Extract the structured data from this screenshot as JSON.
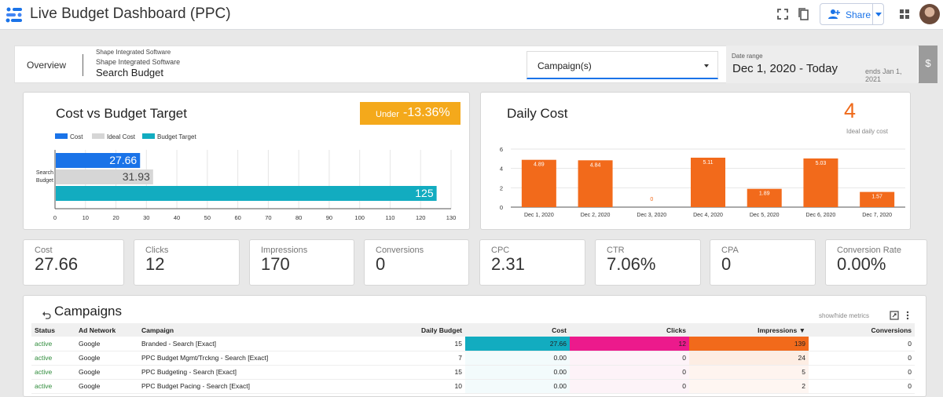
{
  "app": {
    "title": "Live Budget Dashboard (PPC)",
    "share_label": "Share"
  },
  "header": {
    "nav_label": "Overview",
    "account_line1": "Shape Integrated Software",
    "account_line2": "Shape Integrated Software",
    "account_line3": "Search Budget",
    "campaign_filter": "Campaign(s)",
    "date_range_label": "Date range",
    "date_range_value": "Dec 1, 2020 - Today",
    "date_range_end": "ends Jan 1, 2021",
    "side_symbol": "$"
  },
  "colors": {
    "cost": "#1a73e8",
    "ideal": "#d6d6d6",
    "budget": "#12acc0",
    "daily": "#f26a1b",
    "badge": "#f4a91b"
  },
  "cost_vs_budget": {
    "title": "Cost vs Budget Target",
    "badge_label": "Under",
    "badge_value": "-13.36%"
  },
  "daily_cost": {
    "title": "Daily Cost",
    "ideal_value": "4",
    "ideal_label": "Ideal daily cost"
  },
  "chart_data": [
    {
      "type": "bar",
      "orientation": "horizontal",
      "title": "Cost vs Budget Target",
      "categories": [
        "Search Budget"
      ],
      "series": [
        {
          "name": "Cost",
          "values": [
            27.66
          ],
          "label": "27.66"
        },
        {
          "name": "Ideal Cost",
          "values": [
            31.93
          ],
          "label": "31.93"
        },
        {
          "name": "Budget Target",
          "values": [
            125
          ],
          "label": "125"
        }
      ],
      "category_label": [
        "Search",
        "Budget"
      ],
      "xlim": [
        0,
        130
      ],
      "xticks": [
        "0",
        "10",
        "20",
        "30",
        "40",
        "50",
        "60",
        "70",
        "80",
        "90",
        "100",
        "110",
        "120",
        "130"
      ],
      "legend": "top-left"
    },
    {
      "type": "bar",
      "title": "Daily Cost",
      "categories": [
        "Dec 1, 2020",
        "Dec 2, 2020",
        "Dec 3, 2020",
        "Dec 4, 2020",
        "Dec 5, 2020",
        "Dec 6, 2020",
        "Dec 7, 2020"
      ],
      "values": [
        4.89,
        4.84,
        0,
        5.11,
        1.89,
        5.03,
        1.57
      ],
      "labels": [
        "4.89",
        "4.84",
        "0",
        "5.11",
        "1.89",
        "5.03",
        "1.57"
      ],
      "ylim": [
        0,
        6
      ],
      "yticks": [
        "0",
        "2",
        "4",
        "6"
      ]
    }
  ],
  "kpis": [
    {
      "label": "Cost",
      "value": "27.66"
    },
    {
      "label": "Clicks",
      "value": "12"
    },
    {
      "label": "Impressions",
      "value": "170"
    },
    {
      "label": "Conversions",
      "value": "0"
    },
    {
      "label": "CPC",
      "value": "2.31"
    },
    {
      "label": "CTR",
      "value": "7.06%"
    },
    {
      "label": "CPA",
      "value": "0"
    },
    {
      "label": "Conversion Rate",
      "value": "0.00%"
    }
  ],
  "campaigns": {
    "title": "Campaigns",
    "show_hide": "show/hide metrics",
    "columns": [
      "Status",
      "Ad Network",
      "Campaign",
      "Daily Budget",
      "Cost",
      "Clicks",
      "Impressions ▼",
      "Conversions"
    ],
    "rows": [
      {
        "status": "active",
        "network": "Google",
        "campaign": "Branded - Search [Exact]",
        "budget": "15",
        "cost": "27.66",
        "clicks": "12",
        "impressions": "139",
        "conversions": "0",
        "cost_frac": 1.0,
        "clicks_frac": 1.0,
        "impr_frac": 1.0
      },
      {
        "status": "active",
        "network": "Google",
        "campaign": "PPC Budget Mgmt/Trckng - Search [Exact]",
        "budget": "7",
        "cost": "0.00",
        "clicks": "0",
        "impressions": "24",
        "conversions": "0",
        "cost_frac": 0,
        "clicks_frac": 0,
        "impr_frac": 0.17
      },
      {
        "status": "active",
        "network": "Google",
        "campaign": "PPC Budgeting - Search [Exact]",
        "budget": "15",
        "cost": "0.00",
        "clicks": "0",
        "impressions": "5",
        "conversions": "0",
        "cost_frac": 0,
        "clicks_frac": 0,
        "impr_frac": 0.04
      },
      {
        "status": "active",
        "network": "Google",
        "campaign": "PPC Budget Pacing - Search [Exact]",
        "budget": "10",
        "cost": "0.00",
        "clicks": "0",
        "impressions": "2",
        "conversions": "0",
        "cost_frac": 0,
        "clicks_frac": 0,
        "impr_frac": 0.01
      }
    ]
  }
}
